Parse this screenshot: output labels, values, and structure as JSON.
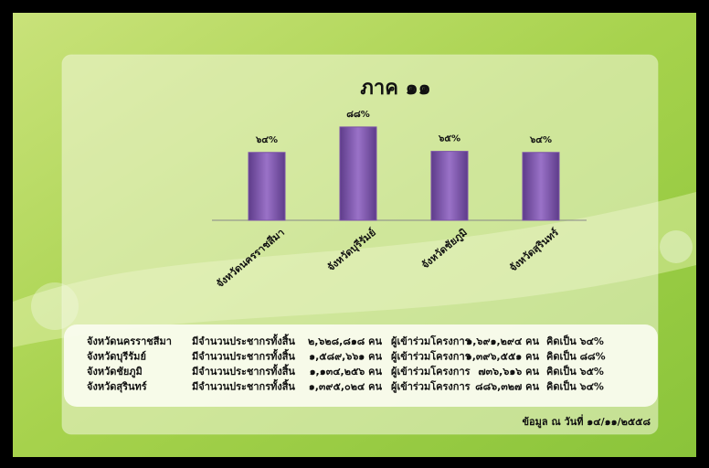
{
  "chart_data": {
    "type": "bar",
    "title": "ภาค ๑๑",
    "categories": [
      "จังหวัดนครราชสีมา",
      "จังหวัดบุรีรัมย์",
      "จังหวัดชัยภูมิ",
      "จังหวัดสุรินทร์"
    ],
    "values": [
      64,
      88,
      65,
      64
    ],
    "value_labels": [
      "๖๔%",
      "๘๘%",
      "๖๕%",
      "๖๔%"
    ],
    "color": "#7b52a8"
  },
  "table": {
    "rows": [
      [
        "จังหวัดนครราชสีมา",
        "มีจำนวนประชากรทั้งสิ้น",
        "๒,๖๒๘,๘๑๘ คน",
        "ผู้เข้าร่วมโครงการ",
        "๑,๖๙๑,๒๙๔ คน",
        "คิดเป็น ๖๔%"
      ],
      [
        "จังหวัดบุรีรัมย์",
        "มีจำนวนประชากรทั้งสิ้น",
        "๑,๕๘๙,๖๖๑ คน",
        "ผู้เข้าร่วมโครงการ",
        "๑,๓๙๖,๕๕๑ คน",
        "คิดเป็น ๘๘%"
      ],
      [
        "จังหวัดชัยภูมิ",
        "มีจำนวนประชากรทั้งสิ้น",
        "๑,๑๓๔,๒๕๖ คน",
        "ผู้เข้าร่วมโครงการ",
        "๗๓๖,๖๑๖ คน",
        "คิดเป็น ๖๕%"
      ],
      [
        "จังหวัดสุรินทร์",
        "มีจำนวนประชากรทั้งสิ้น",
        "๑,๓๙๕,๐๒๔ คน",
        "ผู้เข้าร่วมโครงการ",
        "๘๘๖,๓๒๗ คน",
        "คิดเป็น ๖๔%"
      ]
    ]
  },
  "footer": "ข้อมูล ณ วันที่ ๑๔/๑๑/๒๕๕๘"
}
